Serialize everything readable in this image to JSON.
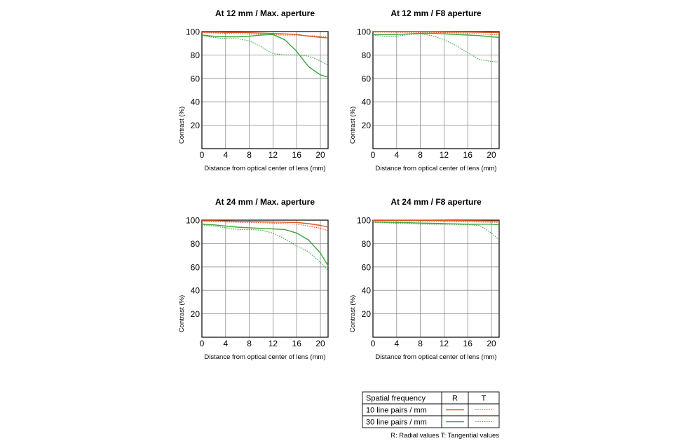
{
  "colors": {
    "ten_lp": "#e0541e",
    "thirty_lp": "#3aa53a",
    "grid": "#8c8c8c",
    "frame": "#000000"
  },
  "chart_data": [
    {
      "type": "line",
      "title": "At 12 mm / Max. aperture",
      "xlabel": "Distance from optical center of lens (mm)",
      "ylabel": "Contrast (%)",
      "xlim": [
        0,
        21.3
      ],
      "ylim": [
        0,
        100
      ],
      "xticks": [
        0,
        4,
        8,
        12,
        16,
        20
      ],
      "yticks": [
        20,
        40,
        60,
        80,
        100
      ],
      "grid": true,
      "x": [
        0,
        2,
        4,
        6,
        8,
        10,
        12,
        14,
        16,
        18,
        20,
        21.3
      ],
      "series": [
        {
          "name": "10 line pairs / mm R",
          "values": [
            99.5,
            99.5,
            99.3,
            99.2,
            99,
            98.7,
            98.4,
            98,
            97.5,
            96,
            95,
            94.5
          ]
        },
        {
          "name": "10 line pairs / mm T",
          "values": [
            99,
            98.8,
            98.5,
            98.2,
            97.8,
            97.5,
            97.3,
            97,
            96.8,
            96.5,
            96,
            95.5
          ]
        },
        {
          "name": "30 line pairs / mm R",
          "values": [
            97,
            96,
            95.5,
            95.5,
            96,
            97,
            97.5,
            93,
            83,
            70,
            63,
            61
          ]
        },
        {
          "name": "30 line pairs / mm T",
          "values": [
            96.5,
            95,
            94,
            94,
            92,
            87,
            81,
            80,
            80,
            79,
            75,
            71
          ]
        }
      ]
    },
    {
      "type": "line",
      "title": "At 12 mm / F8 aperture",
      "xlabel": "Distance from optical center of lens (mm)",
      "ylabel": "Contrast (%)",
      "xlim": [
        0,
        21.3
      ],
      "ylim": [
        0,
        100
      ],
      "xticks": [
        0,
        4,
        8,
        12,
        16,
        20
      ],
      "yticks": [
        20,
        40,
        60,
        80,
        100
      ],
      "grid": true,
      "x": [
        0,
        2,
        4,
        6,
        8,
        10,
        12,
        14,
        16,
        18,
        20,
        21.3
      ],
      "series": [
        {
          "name": "10 line pairs / mm R",
          "values": [
            99.8,
            99.8,
            99.8,
            99.8,
            99.8,
            99.8,
            99.7,
            99.6,
            99.5,
            99.4,
            99.2,
            99
          ]
        },
        {
          "name": "10 line pairs / mm T",
          "values": [
            99.5,
            99.5,
            99.4,
            99.3,
            99.2,
            99.2,
            99,
            98.8,
            98.5,
            98,
            97.5,
            97
          ]
        },
        {
          "name": "30 line pairs / mm R",
          "values": [
            97.5,
            97.5,
            97.5,
            98,
            98.5,
            98.5,
            98,
            97.5,
            97,
            96.5,
            95.5,
            95
          ]
        },
        {
          "name": "30 line pairs / mm T",
          "values": [
            97,
            96,
            96,
            97.5,
            98,
            96.5,
            93,
            88,
            82,
            76,
            74.5,
            74
          ]
        }
      ]
    },
    {
      "type": "line",
      "title": "At 24 mm / Max. aperture",
      "xlabel": "Distance from optical center of lens (mm)",
      "ylabel": "Contrast (%)",
      "xlim": [
        0,
        21.3
      ],
      "ylim": [
        0,
        100
      ],
      "xticks": [
        0,
        4,
        8,
        12,
        16,
        20
      ],
      "yticks": [
        20,
        40,
        60,
        80,
        100
      ],
      "grid": true,
      "x": [
        0,
        2,
        4,
        6,
        8,
        10,
        12,
        14,
        16,
        18,
        20,
        21.3
      ],
      "series": [
        {
          "name": "10 line pairs / mm R",
          "values": [
            99.5,
            99.5,
            99.3,
            99,
            98.8,
            98.6,
            98.4,
            98.2,
            98,
            97,
            95.5,
            94
          ]
        },
        {
          "name": "10 line pairs / mm T",
          "values": [
            99,
            98.8,
            98.5,
            98.2,
            98,
            97.8,
            97.5,
            97,
            96.5,
            95,
            93,
            91
          ]
        },
        {
          "name": "30 line pairs / mm R",
          "values": [
            96.5,
            96,
            95,
            94,
            93.5,
            93,
            92.5,
            92,
            89,
            83,
            72,
            61
          ]
        },
        {
          "name": "30 line pairs / mm T",
          "values": [
            96,
            95,
            93.5,
            92,
            92,
            91.5,
            89,
            84,
            78,
            73,
            64,
            57
          ]
        }
      ]
    },
    {
      "type": "line",
      "title": "At 24 mm / F8 aperture",
      "xlabel": "Distance from optical center of lens (mm)",
      "ylabel": "Contrast (%)",
      "xlim": [
        0,
        21.3
      ],
      "ylim": [
        0,
        100
      ],
      "xticks": [
        0,
        4,
        8,
        12,
        16,
        20
      ],
      "yticks": [
        20,
        40,
        60,
        80,
        100
      ],
      "grid": true,
      "x": [
        0,
        2,
        4,
        6,
        8,
        10,
        12,
        14,
        16,
        18,
        20,
        21.3
      ],
      "series": [
        {
          "name": "10 line pairs / mm R",
          "values": [
            99.8,
            99.8,
            99.8,
            99.8,
            99.8,
            99.8,
            99.7,
            99.6,
            99.5,
            99.4,
            99.3,
            99.2
          ]
        },
        {
          "name": "10 line pairs / mm T",
          "values": [
            99.5,
            99.5,
            99.4,
            99.3,
            99.2,
            99.1,
            99,
            98.8,
            98.6,
            98.4,
            98.2,
            98
          ]
        },
        {
          "name": "30 line pairs / mm R",
          "values": [
            98.5,
            98.3,
            98,
            97.8,
            97.5,
            97.3,
            97,
            96.8,
            96.5,
            96.5,
            96.5,
            96
          ]
        },
        {
          "name": "30 line pairs / mm T",
          "values": [
            98,
            97.8,
            97.3,
            97,
            96.5,
            96.5,
            96.5,
            96.3,
            96,
            95.5,
            89,
            83
          ]
        }
      ]
    }
  ],
  "legend": {
    "header_label": "Spatial frequency",
    "col_r": "R",
    "col_t": "T",
    "row1_label": "10 line pairs / mm",
    "row2_label": "30 line pairs / mm",
    "footnote": "R: Radial values  T: Tangential values"
  }
}
